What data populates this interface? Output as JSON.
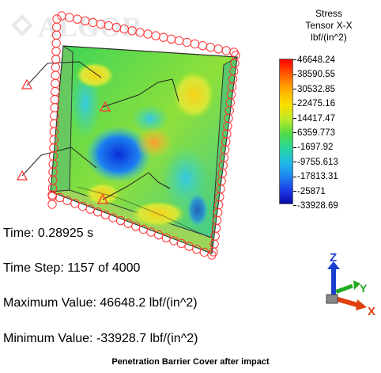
{
  "watermark": {
    "text": "ALGOR"
  },
  "legend": {
    "title_lines": [
      "Stress",
      "Tensor X-X",
      "lbf/(in^2)"
    ],
    "ticks": [
      "46648.24",
      "38590.55",
      "30532.85",
      "22475.16",
      "14417.47",
      "6359.773",
      "-1697.92",
      "-9755.613",
      "-17813.31",
      "-25871",
      "-33928.69"
    ]
  },
  "info": {
    "time": "Time: 0.28925 s",
    "time_step": "Time Step:  1157 of 4000",
    "max_value": "Maximum Value: 46648.2 lbf/(in^2)",
    "min_value": "Minimum Value: -33928.7 lbf/(in^2)"
  },
  "axes": {
    "z": "Z",
    "y": "Y",
    "x": "X"
  },
  "caption": "Penetration Barrier Cover after impact",
  "colors": {
    "max": "#ff0000",
    "min": "#0a0aa8",
    "constraint": "#ff3333",
    "axis_z": "#1a3fd0",
    "axis_y": "#22aa22",
    "axis_x": "#e04010"
  }
}
